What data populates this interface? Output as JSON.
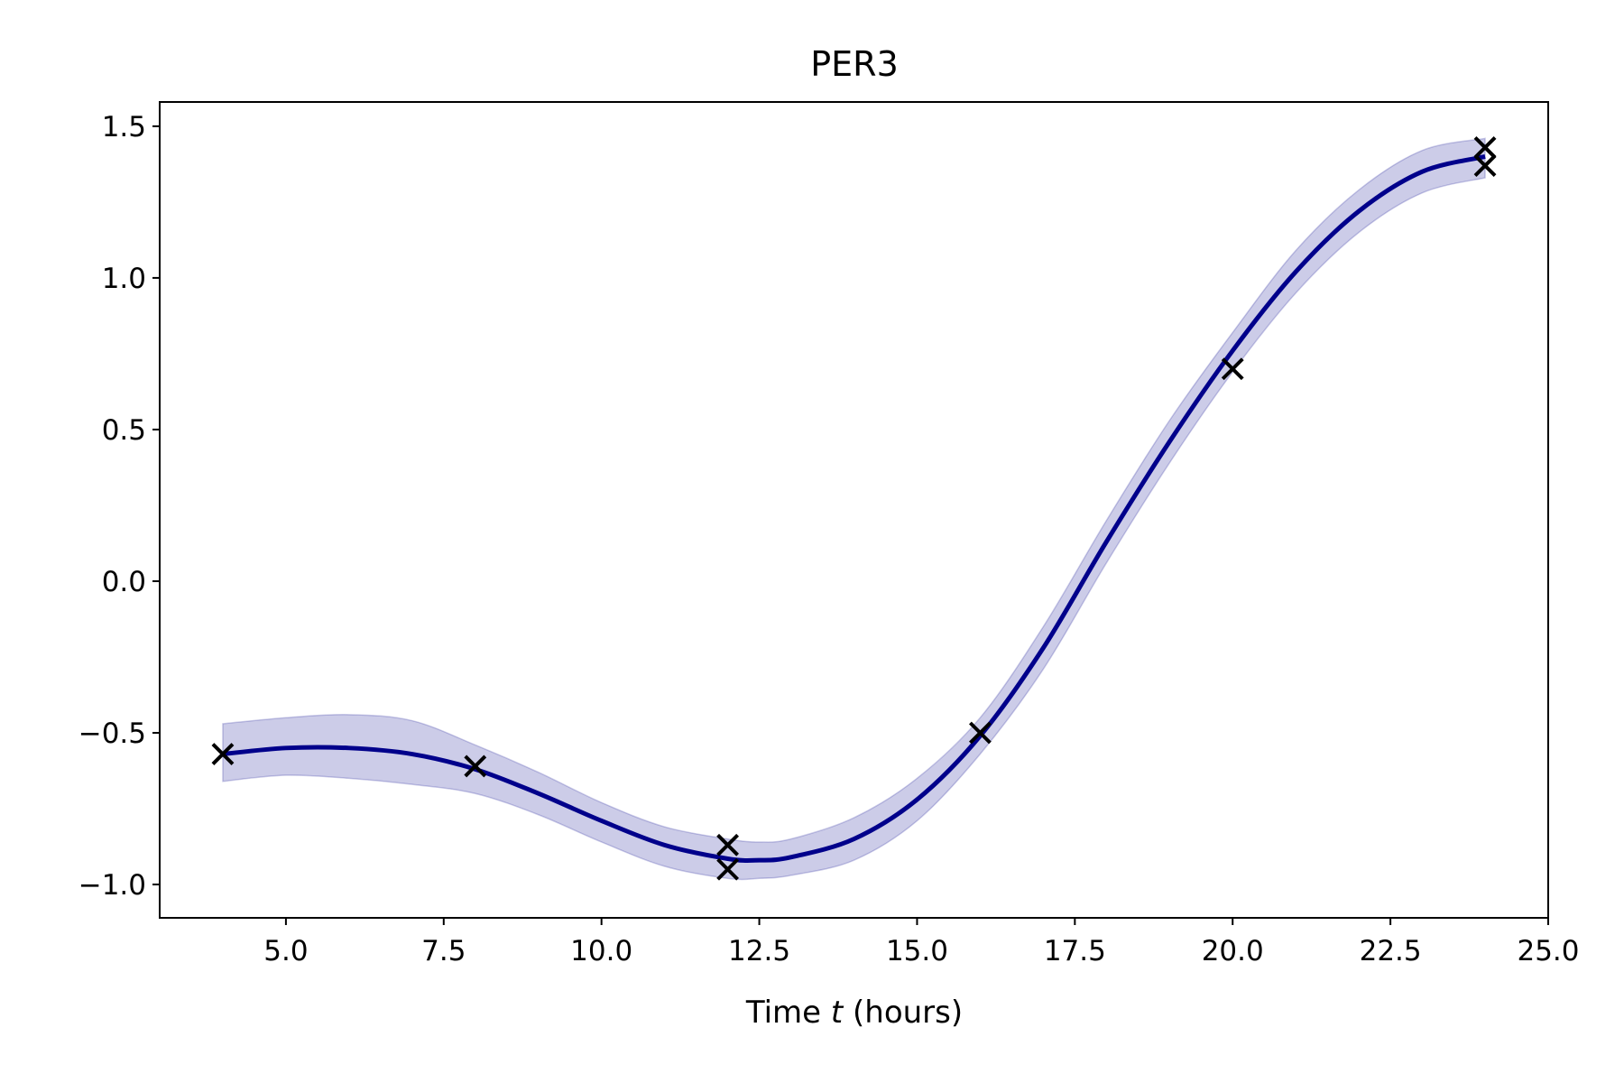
{
  "chart_data": {
    "type": "line",
    "title": "PER3",
    "xlabel": {
      "prefix": "Time ",
      "variable": "t",
      "suffix": " (hours)"
    },
    "ylabel": "",
    "xlim": [
      3.0,
      25.0
    ],
    "ylim": [
      -1.11,
      1.58
    ],
    "xticks": [
      {
        "value": 5.0,
        "label": "5.0"
      },
      {
        "value": 7.5,
        "label": "7.5"
      },
      {
        "value": 10.0,
        "label": "10.0"
      },
      {
        "value": 12.5,
        "label": "12.5"
      },
      {
        "value": 15.0,
        "label": "15.0"
      },
      {
        "value": 17.5,
        "label": "17.5"
      },
      {
        "value": 20.0,
        "label": "20.0"
      },
      {
        "value": 22.5,
        "label": "22.5"
      },
      {
        "value": 25.0,
        "label": "25.0"
      }
    ],
    "yticks": [
      {
        "value": -1.0,
        "label": "−1.0"
      },
      {
        "value": -0.5,
        "label": "−0.5"
      },
      {
        "value": 0.0,
        "label": "0.0"
      },
      {
        "value": 0.5,
        "label": "0.5"
      },
      {
        "value": 1.0,
        "label": "1.0"
      },
      {
        "value": 1.5,
        "label": "1.5"
      }
    ],
    "grid": false,
    "mean_curve": {
      "x": [
        4.0,
        5.0,
        6.0,
        7.0,
        8.0,
        9.0,
        10.0,
        11.0,
        12.0,
        12.5,
        13.0,
        14.0,
        15.0,
        16.0,
        17.0,
        18.0,
        19.0,
        20.0,
        21.0,
        22.0,
        23.0,
        24.0
      ],
      "y": [
        -0.57,
        -0.55,
        -0.55,
        -0.57,
        -0.62,
        -0.7,
        -0.79,
        -0.87,
        -0.915,
        -0.92,
        -0.91,
        -0.85,
        -0.72,
        -0.51,
        -0.22,
        0.13,
        0.46,
        0.76,
        1.02,
        1.22,
        1.35,
        1.4
      ],
      "color": "#00008b"
    },
    "confidence_band": {
      "x": [
        4.0,
        5.0,
        6.0,
        7.0,
        8.0,
        9.0,
        10.0,
        11.0,
        12.0,
        12.5,
        13.0,
        14.0,
        15.0,
        16.0,
        17.0,
        18.0,
        19.0,
        20.0,
        21.0,
        22.0,
        23.0,
        24.0
      ],
      "upper": [
        -0.47,
        -0.45,
        -0.44,
        -0.46,
        -0.54,
        -0.63,
        -0.73,
        -0.81,
        -0.85,
        -0.86,
        -0.85,
        -0.78,
        -0.65,
        -0.45,
        -0.15,
        0.2,
        0.53,
        0.82,
        1.09,
        1.29,
        1.42,
        1.46
      ],
      "lower": [
        -0.66,
        -0.64,
        -0.65,
        -0.67,
        -0.7,
        -0.77,
        -0.86,
        -0.94,
        -0.98,
        -0.98,
        -0.97,
        -0.92,
        -0.79,
        -0.57,
        -0.29,
        0.06,
        0.39,
        0.69,
        0.95,
        1.15,
        1.28,
        1.33
      ],
      "color": "#00008b",
      "opacity": 0.2
    },
    "observations": {
      "marker": "x",
      "color": "#000000",
      "x": [
        4.0,
        8.0,
        12.0,
        12.0,
        16.0,
        20.0,
        24.0,
        24.0
      ],
      "y": [
        -0.57,
        -0.61,
        -0.87,
        -0.95,
        -0.5,
        0.7,
        1.43,
        1.37
      ]
    }
  }
}
